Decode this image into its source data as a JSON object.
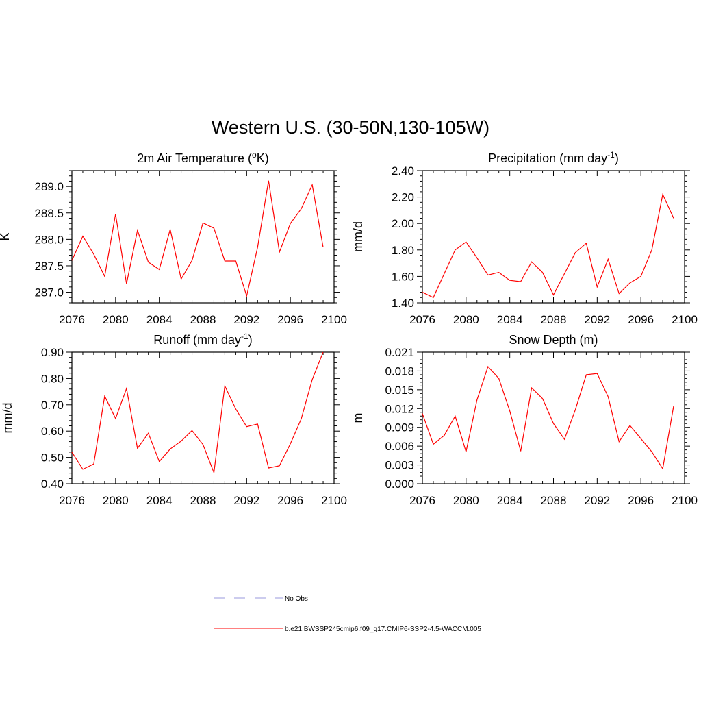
{
  "figure": {
    "title": "Western U.S. (30-50N,130-105W)"
  },
  "chart_data": [
    {
      "type": "line",
      "title": "2m Air Temperature (°K)",
      "title_base": "2m Air Temperature (",
      "title_sup": "o",
      "title_tail": "K)",
      "xlabel": "",
      "ylabel": "K",
      "xlim": [
        2076,
        2100
      ],
      "ylim": [
        286.8,
        289.3
      ],
      "xticks": [
        2076,
        2080,
        2084,
        2088,
        2092,
        2096,
        2100
      ],
      "yticks": [
        287.0,
        287.5,
        288.0,
        288.5,
        289.0
      ],
      "ytick_labels": [
        "287.0",
        "287.5",
        "288.0",
        "288.5",
        "289.0"
      ],
      "x": [
        2076,
        2077,
        2078,
        2079,
        2080,
        2081,
        2082,
        2083,
        2084,
        2085,
        2086,
        2087,
        2088,
        2089,
        2090,
        2091,
        2092,
        2093,
        2094,
        2095,
        2096,
        2097,
        2098,
        2099
      ],
      "series": [
        {
          "name": "b.e21.BWSSP245cmip6.f09_g17.CMIP6-SSP2-4.5-WACCM.005",
          "color": "#ff0000",
          "values": [
            287.6,
            288.06,
            287.72,
            287.3,
            288.48,
            287.16,
            288.17,
            287.57,
            287.43,
            288.19,
            287.25,
            287.6,
            288.31,
            288.21,
            287.59,
            287.59,
            286.93,
            287.85,
            289.11,
            287.76,
            288.3,
            288.58,
            289.03,
            287.85
          ]
        }
      ]
    },
    {
      "type": "line",
      "title": "Precipitation (mm day-1)",
      "title_base": "Precipitation (mm day",
      "title_sup": "-1",
      "title_tail": ")",
      "xlabel": "",
      "ylabel": "mm/d",
      "xlim": [
        2076,
        2100
      ],
      "ylim": [
        1.4,
        2.4
      ],
      "xticks": [
        2076,
        2080,
        2084,
        2088,
        2092,
        2096,
        2100
      ],
      "yticks": [
        1.4,
        1.6,
        1.8,
        2.0,
        2.2,
        2.4
      ],
      "ytick_labels": [
        "1.40",
        "1.60",
        "1.80",
        "2.00",
        "2.20",
        "2.40"
      ],
      "x": [
        2076,
        2077,
        2078,
        2079,
        2080,
        2081,
        2082,
        2083,
        2084,
        2085,
        2086,
        2087,
        2088,
        2089,
        2090,
        2091,
        2092,
        2093,
        2094,
        2095,
        2096,
        2097,
        2098,
        2099
      ],
      "series": [
        {
          "name": "b.e21.BWSSP245cmip6.f09_g17.CMIP6-SSP2-4.5-WACCM.005",
          "color": "#ff0000",
          "values": [
            1.48,
            1.44,
            1.62,
            1.8,
            1.86,
            1.74,
            1.61,
            1.63,
            1.57,
            1.56,
            1.71,
            1.63,
            1.46,
            1.62,
            1.78,
            1.85,
            1.52,
            1.73,
            1.47,
            1.55,
            1.6,
            1.8,
            2.22,
            2.04
          ]
        }
      ]
    },
    {
      "type": "line",
      "title": "Runoff (mm day-1)",
      "title_base": "Runoff (mm day",
      "title_sup": "-1",
      "title_tail": ")",
      "xlabel": "",
      "ylabel": "mm/d",
      "xlim": [
        2076,
        2100
      ],
      "ylim": [
        0.4,
        0.9
      ],
      "xticks": [
        2076,
        2080,
        2084,
        2088,
        2092,
        2096,
        2100
      ],
      "yticks": [
        0.4,
        0.5,
        0.6,
        0.7,
        0.8,
        0.9
      ],
      "ytick_labels": [
        "0.40",
        "0.50",
        "0.60",
        "0.70",
        "0.80",
        "0.90"
      ],
      "x": [
        2076,
        2077,
        2078,
        2079,
        2080,
        2081,
        2082,
        2083,
        2084,
        2085,
        2086,
        2087,
        2088,
        2089,
        2090,
        2091,
        2092,
        2093,
        2094,
        2095,
        2096,
        2097,
        2098,
        2099
      ],
      "series": [
        {
          "name": "b.e21.BWSSP245cmip6.f09_g17.CMIP6-SSP2-4.5-WACCM.005",
          "color": "#ff0000",
          "values": [
            0.52,
            0.455,
            0.475,
            0.733,
            0.648,
            0.762,
            0.534,
            0.592,
            0.484,
            0.532,
            0.562,
            0.602,
            0.549,
            0.442,
            0.772,
            0.684,
            0.617,
            0.627,
            0.46,
            0.468,
            0.552,
            0.647,
            0.796,
            0.9
          ]
        }
      ]
    },
    {
      "type": "line",
      "title": "Snow Depth (m)",
      "title_base": "Snow Depth (m)",
      "title_sup": "",
      "title_tail": "",
      "xlabel": "",
      "ylabel": "m",
      "xlim": [
        2076,
        2100
      ],
      "ylim": [
        0.0,
        0.021
      ],
      "xticks": [
        2076,
        2080,
        2084,
        2088,
        2092,
        2096,
        2100
      ],
      "yticks": [
        0.0,
        0.003,
        0.006,
        0.009,
        0.012,
        0.015,
        0.018,
        0.021
      ],
      "ytick_labels": [
        "0.000",
        "0.003",
        "0.006",
        "0.009",
        "0.012",
        "0.015",
        "0.018",
        "0.021"
      ],
      "x": [
        2076,
        2077,
        2078,
        2079,
        2080,
        2081,
        2082,
        2083,
        2084,
        2085,
        2086,
        2087,
        2088,
        2089,
        2090,
        2091,
        2092,
        2093,
        2094,
        2095,
        2096,
        2097,
        2098,
        2099
      ],
      "series": [
        {
          "name": "b.e21.BWSSP245cmip6.f09_g17.CMIP6-SSP2-4.5-WACCM.005",
          "color": "#ff0000",
          "values": [
            0.0112,
            0.0063,
            0.0077,
            0.0108,
            0.0051,
            0.0134,
            0.0187,
            0.0168,
            0.0116,
            0.0052,
            0.0153,
            0.0136,
            0.0096,
            0.0071,
            0.0118,
            0.0174,
            0.0176,
            0.0139,
            0.0067,
            0.0093,
            0.0072,
            0.0051,
            0.0024,
            0.0124
          ]
        }
      ]
    }
  ],
  "legend": {
    "items": [
      {
        "label": "No Obs",
        "color": "#9999dd",
        "style": "dashed"
      },
      {
        "label": "b.e21.BWSSP245cmip6.f09_g17.CMIP6-SSP2-4.5-WACCM.005",
        "color": "#ff0000",
        "style": "solid"
      }
    ]
  }
}
